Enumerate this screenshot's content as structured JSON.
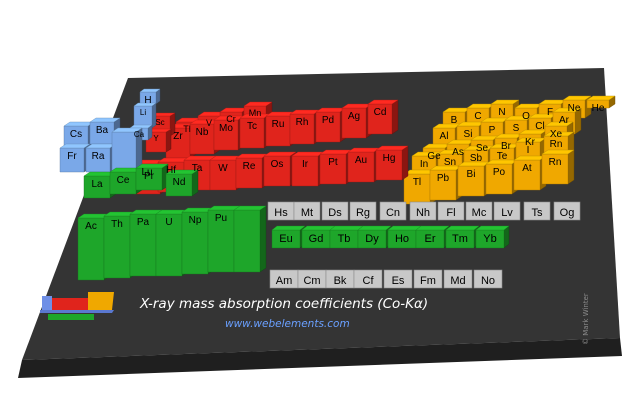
{
  "title": "X-ray mass absorption coefficients (Co-Kα)",
  "url": "www.webelements.com",
  "copyright": "© Mark Winter",
  "colors": {
    "s_block": "#7aa8e8",
    "d_block": "#e0241c",
    "p_block": "#f0a800",
    "f_block": "#1ea62a",
    "no_data": "#c8c8c8",
    "base": "#2e2e2e",
    "legend_blue": "#6f8fe6"
  },
  "elements": {
    "top_row": [
      "Hs",
      "Mt",
      "Ds",
      "Rg",
      "Cn",
      "Nh",
      "Fl",
      "Mc",
      "Lv",
      "Ts",
      "Og"
    ],
    "lanthanides_green": [
      "Eu",
      "Gd",
      "Tb",
      "Dy",
      "Ho",
      "Er",
      "Tm",
      "Yb"
    ],
    "actinides_grey": [
      "Am",
      "Cm",
      "Bk",
      "Cf",
      "Es",
      "Fm",
      "Md",
      "No"
    ],
    "f_block_tall_front": [
      "Ac",
      "Th",
      "Pa",
      "U",
      "Np",
      "Pu"
    ],
    "f_block_tall_back": [
      "La",
      "Ce",
      "Pr",
      "Nd"
    ],
    "s_block": [
      "H",
      "Cs",
      "Ba",
      "Fr",
      "Ra",
      "Li",
      "Ca",
      "Sc"
    ],
    "d_block": [
      "Tl",
      "V",
      "Cr",
      "Mn",
      "Lu",
      "Hf",
      "Ta",
      "W",
      "Re",
      "Os",
      "Ir",
      "Pt",
      "Au",
      "Hg",
      "Zr",
      "Nb",
      "Mo",
      "Tc",
      "Ru",
      "Rh",
      "Pd",
      "Ag",
      "Cd",
      "Y"
    ],
    "p_block": [
      "He",
      "B",
      "C",
      "N",
      "O",
      "F",
      "Ne",
      "Al",
      "Si",
      "P",
      "S",
      "Cl",
      "Ar",
      "Ge",
      "As",
      "Se",
      "Br",
      "Kr",
      "In",
      "Sn",
      "Sb",
      "Te",
      "I",
      "Xe",
      "Tl",
      "Pb",
      "Bi",
      "Po",
      "At",
      "Rn"
    ]
  }
}
